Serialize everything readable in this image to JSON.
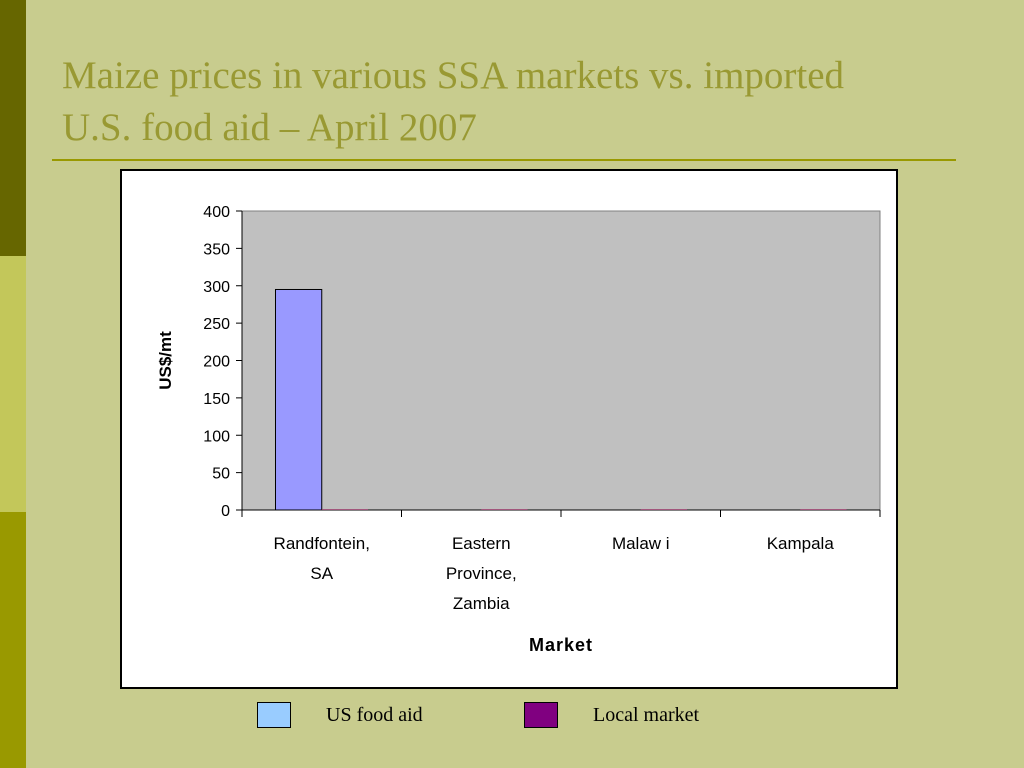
{
  "slide": {
    "title_line1": "Maize prices in various SSA markets vs. imported",
    "title_line2": "U.S. food aid – April 2007",
    "colors": {
      "background": "#c8cc8e",
      "title": "#999933",
      "plot_area": "#c0c0c0",
      "us_food_aid_bar": "#9999ff",
      "local_market_bar": "#993366",
      "legend_us_food_aid": "#99ccff",
      "legend_local_market": "#800080"
    }
  },
  "chart_data": {
    "type": "bar",
    "title": "",
    "xlabel": "Market",
    "ylabel": "US$/mt",
    "ylim": [
      0,
      400
    ],
    "yticks": [
      "0",
      "50",
      "100",
      "150",
      "200",
      "250",
      "300",
      "350",
      "400"
    ],
    "categories": [
      [
        "Randfontein,",
        "SA"
      ],
      [
        "Eastern",
        "Province,",
        "Zambia"
      ],
      [
        "Malaw i"
      ],
      [
        "Kampala"
      ]
    ],
    "series": [
      {
        "name": "US food aid",
        "values": [
          295,
          0,
          0,
          0
        ]
      },
      {
        "name": "Local market",
        "values": [
          1,
          1,
          1,
          1
        ]
      }
    ],
    "grid": false,
    "legend_position": "bottom"
  }
}
